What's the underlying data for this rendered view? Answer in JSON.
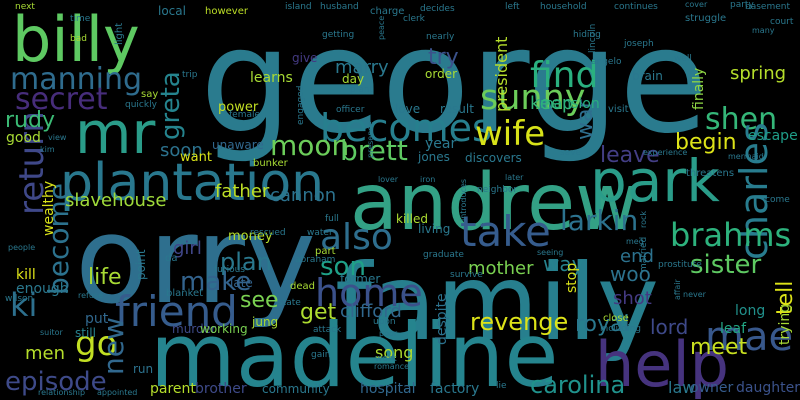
{
  "wordcloud": {
    "words": [
      {
        "text": "george",
        "color": "#2a7b8e"
      },
      {
        "text": "orry",
        "color": "#2e6f8e"
      },
      {
        "text": "family",
        "color": "#277f8e"
      },
      {
        "text": "madeline",
        "color": "#25848e"
      },
      {
        "text": "andrew",
        "color": "#33a185"
      },
      {
        "text": "billy",
        "color": "#5ec962"
      },
      {
        "text": "mr",
        "color": "#2a9c89"
      },
      {
        "text": "park",
        "color": "#2a9c89"
      },
      {
        "text": "help",
        "color": "#46337e"
      },
      {
        "text": "plantation",
        "color": "#29788e"
      },
      {
        "text": "friend",
        "color": "#365c8d"
      },
      {
        "text": "return",
        "color": "#3f4889"
      },
      {
        "text": "become",
        "color": "#2c728e"
      },
      {
        "text": "home",
        "color": "#3b518b"
      },
      {
        "text": "also",
        "color": "#2e6e8e"
      },
      {
        "text": "take",
        "color": "#365c8d"
      },
      {
        "text": "manning",
        "color": "#2f6c8e"
      },
      {
        "text": "secret",
        "color": "#472d7b"
      },
      {
        "text": "becomes",
        "color": "#277f8e"
      },
      {
        "text": "sunny",
        "color": "#6ccd5a"
      },
      {
        "text": "find",
        "color": "#2ab07f"
      },
      {
        "text": "wife",
        "color": "#d8e219"
      },
      {
        "text": "shen",
        "color": "#35b779"
      },
      {
        "text": "charles",
        "color": "#287c8e"
      },
      {
        "text": "brahms",
        "color": "#2db27d"
      },
      {
        "text": "mae",
        "color": "#38588c"
      },
      {
        "text": "go",
        "color": "#c2df23"
      },
      {
        "text": "new",
        "color": "#31688e"
      },
      {
        "text": "ki",
        "color": "#2d708e"
      },
      {
        "text": "moon",
        "color": "#6ccd5a"
      },
      {
        "text": "greta",
        "color": "#25848e"
      },
      {
        "text": "brett",
        "color": "#5ec962"
      },
      {
        "text": "larkin",
        "color": "#2c728e"
      },
      {
        "text": "son",
        "color": "#1fa188"
      },
      {
        "text": "make",
        "color": "#33638d"
      },
      {
        "text": "plan",
        "color": "#2a788e"
      },
      {
        "text": "life",
        "color": "#a8db34"
      },
      {
        "text": "get",
        "color": "#addc30"
      },
      {
        "text": "see",
        "color": "#7ad151"
      },
      {
        "text": "episode",
        "color": "#3e4a89"
      },
      {
        "text": "carolina",
        "color": "#20928c"
      },
      {
        "text": "revenge",
        "color": "#dde318"
      },
      {
        "text": "meet",
        "color": "#c8e020"
      },
      {
        "text": "tell",
        "color": "#dde318"
      },
      {
        "text": "sister",
        "color": "#5ec962"
      },
      {
        "text": "rudy",
        "color": "#3bbb75"
      },
      {
        "text": "begin",
        "color": "#dde318"
      },
      {
        "text": "leave",
        "color": "#433e85"
      },
      {
        "text": "war",
        "color": "#2e6e8e"
      },
      {
        "text": "spring",
        "color": "#b5de2b"
      },
      {
        "text": "royal",
        "color": "#2a788e"
      },
      {
        "text": "lord",
        "color": "#3e4989"
      },
      {
        "text": "men",
        "color": "#b5de2b"
      },
      {
        "text": "woo",
        "color": "#2c728e"
      },
      {
        "text": "father",
        "color": "#bddf26"
      },
      {
        "text": "cannon",
        "color": "#2c728e"
      },
      {
        "text": "slavehouse",
        "color": "#9fda3a"
      },
      {
        "text": "keep",
        "color": "#35b779"
      },
      {
        "text": "try",
        "color": "#3b528b"
      },
      {
        "text": "marry",
        "color": "#2a788e"
      },
      {
        "text": "soon",
        "color": "#2c728e"
      },
      {
        "text": "way",
        "color": "#26828e"
      },
      {
        "text": "clifford",
        "color": "#31688e"
      },
      {
        "text": "mother",
        "color": "#7ad151"
      },
      {
        "text": "song",
        "color": "#addc30"
      },
      {
        "text": "girl",
        "color": "#404688"
      },
      {
        "text": "end",
        "color": "#2c728e"
      },
      {
        "text": "shot",
        "color": "#443a83"
      },
      {
        "text": "president",
        "color": "#b5de2b"
      },
      {
        "text": "mansion",
        "color": "#29af7f"
      },
      {
        "text": "stop",
        "color": "#d8e219"
      },
      {
        "text": "despite",
        "color": "#2c728e"
      },
      {
        "text": "learns",
        "color": "#a8db34"
      },
      {
        "text": "escape",
        "color": "#1f9e89"
      },
      {
        "text": "finally",
        "color": "#8fd744"
      },
      {
        "text": "hospital",
        "color": "#31688e"
      },
      {
        "text": "factory",
        "color": "#2a788e"
      },
      {
        "text": "law",
        "color": "#2a788e"
      },
      {
        "text": "leaf",
        "color": "#22a785"
      },
      {
        "text": "trying",
        "color": "#a8db34"
      },
      {
        "text": "daughter",
        "color": "#3b528b"
      },
      {
        "text": "long",
        "color": "#21918c"
      },
      {
        "text": "owner",
        "color": "#365c8d"
      },
      {
        "text": "brother",
        "color": "#3e4a89"
      },
      {
        "text": "parent",
        "color": "#b5de2b"
      },
      {
        "text": "community",
        "color": "#2a788e"
      },
      {
        "text": "put",
        "color": "#31688e"
      },
      {
        "text": "still",
        "color": "#26828e"
      },
      {
        "text": "run",
        "color": "#2c728e"
      },
      {
        "text": "kill",
        "color": "#dde318"
      },
      {
        "text": "wealthy",
        "color": "#d8e219"
      },
      {
        "text": "good",
        "color": "#a8db34"
      },
      {
        "text": "enough",
        "color": "#2a788e"
      },
      {
        "text": "want",
        "color": "#d8e219"
      },
      {
        "text": "power",
        "color": "#c2df23"
      },
      {
        "text": "unaware",
        "color": "#31688e"
      },
      {
        "text": "money",
        "color": "#b5de2b"
      },
      {
        "text": "late",
        "color": "#33638d"
      },
      {
        "text": "point",
        "color": "#2a788e"
      },
      {
        "text": "jung",
        "color": "#a8db34"
      },
      {
        "text": "murder",
        "color": "#3e4a89"
      },
      {
        "text": "working",
        "color": "#7ad151"
      },
      {
        "text": "killed",
        "color": "#addc30"
      },
      {
        "text": "former",
        "color": "#2a788e"
      },
      {
        "text": "year",
        "color": "#2a788e"
      },
      {
        "text": "jones",
        "color": "#2a788e"
      },
      {
        "text": "discovers",
        "color": "#2a788e"
      },
      {
        "text": "order",
        "color": "#a8db34"
      },
      {
        "text": "love",
        "color": "#2a788e"
      },
      {
        "text": "result",
        "color": "#2a788e"
      },
      {
        "text": "living",
        "color": "#2a788e"
      },
      {
        "text": "day",
        "color": "#a8db34"
      },
      {
        "text": "local",
        "color": "#2a788e"
      },
      {
        "text": "next",
        "color": "#a8db34"
      },
      {
        "text": "time",
        "color": "#2a788e"
      },
      {
        "text": "bad",
        "color": "#a8db34"
      },
      {
        "text": "however",
        "color": "#bddf26"
      },
      {
        "text": "island",
        "color": "#2a788e"
      },
      {
        "text": "husband",
        "color": "#2a788e"
      },
      {
        "text": "charge",
        "color": "#2a788e"
      },
      {
        "text": "decides",
        "color": "#2a788e"
      },
      {
        "text": "left",
        "color": "#2a788e"
      },
      {
        "text": "household",
        "color": "#2a788e"
      },
      {
        "text": "continues",
        "color": "#2a788e"
      },
      {
        "text": "struggle",
        "color": "#2a788e"
      },
      {
        "text": "party",
        "color": "#2a788e"
      },
      {
        "text": "basement",
        "color": "#2a788e"
      },
      {
        "text": "court",
        "color": "#2a788e"
      },
      {
        "text": "brain",
        "color": "#2a788e"
      },
      {
        "text": "visit",
        "color": "#2a788e"
      },
      {
        "text": "joseph",
        "color": "#2a788e"
      },
      {
        "text": "lincoln",
        "color": "#2a788e"
      },
      {
        "text": "light",
        "color": "#2a788e"
      },
      {
        "text": "give",
        "color": "#443a83"
      },
      {
        "text": "getting",
        "color": "#2a788e"
      },
      {
        "text": "peace",
        "color": "#2a788e"
      },
      {
        "text": "clerk",
        "color": "#2a788e"
      },
      {
        "text": "hiding",
        "color": "#2a788e"
      },
      {
        "text": "nearly",
        "color": "#2a788e"
      },
      {
        "text": "angelo",
        "color": "#2a788e"
      },
      {
        "text": "well",
        "color": "#2a788e"
      },
      {
        "text": "many",
        "color": "#2a788e"
      },
      {
        "text": "cover",
        "color": "#2a788e"
      },
      {
        "text": "trip",
        "color": "#2a788e"
      },
      {
        "text": "say",
        "color": "#a8db34"
      },
      {
        "text": "quickly",
        "color": "#2a788e"
      },
      {
        "text": "female",
        "color": "#2a788e"
      },
      {
        "text": "plant",
        "color": "#2a788e"
      },
      {
        "text": "officer",
        "color": "#2a788e"
      },
      {
        "text": "engaged",
        "color": "#2a788e"
      },
      {
        "text": "save",
        "color": "#2a788e"
      },
      {
        "text": "experience",
        "color": "#2a788e"
      },
      {
        "text": "mermaid",
        "color": "#2a788e"
      },
      {
        "text": "bunker",
        "color": "#a8db34"
      },
      {
        "text": "rescued",
        "color": "#2a788e"
      },
      {
        "text": "water",
        "color": "#2a788e"
      },
      {
        "text": "full",
        "color": "#2a788e"
      },
      {
        "text": "presence",
        "color": "#2a788e"
      },
      {
        "text": "lover",
        "color": "#2a788e"
      },
      {
        "text": "iron",
        "color": "#2a788e"
      },
      {
        "text": "neighbor",
        "color": "#2a788e"
      },
      {
        "text": "threatens",
        "color": "#2a788e"
      },
      {
        "text": "come",
        "color": "#2a788e"
      },
      {
        "text": "introduces",
        "color": "#2a788e"
      },
      {
        "text": "later",
        "color": "#2a788e"
      },
      {
        "text": "rock",
        "color": "#2a788e"
      },
      {
        "text": "meg",
        "color": "#2a788e"
      },
      {
        "text": "prostitute",
        "color": "#2a788e"
      },
      {
        "text": "people",
        "color": "#2a788e"
      },
      {
        "text": "view",
        "color": "#2a788e"
      },
      {
        "text": "kim",
        "color": "#2a788e"
      },
      {
        "text": "da",
        "color": "#2a788e"
      },
      {
        "text": "furious",
        "color": "#2a788e"
      },
      {
        "text": "abraham",
        "color": "#2a788e"
      },
      {
        "text": "part",
        "color": "#a8db34"
      },
      {
        "text": "dead",
        "color": "#a8db34"
      },
      {
        "text": "state",
        "color": "#2a788e"
      },
      {
        "text": "graduate",
        "color": "#2a788e"
      },
      {
        "text": "seeing",
        "color": "#2a788e"
      },
      {
        "text": "survive",
        "color": "#2a788e"
      },
      {
        "text": "married",
        "color": "#2a788e"
      },
      {
        "text": "affair",
        "color": "#2a788e"
      },
      {
        "text": "never",
        "color": "#2a788e"
      },
      {
        "text": "refuse",
        "color": "#2a788e"
      },
      {
        "text": "wilson",
        "color": "#2a788e"
      },
      {
        "text": "suitor",
        "color": "#2a788e"
      },
      {
        "text": "blanket",
        "color": "#2a788e"
      },
      {
        "text": "upon",
        "color": "#2a788e"
      },
      {
        "text": "poor",
        "color": "#2a788e"
      },
      {
        "text": "attack",
        "color": "#2a788e"
      },
      {
        "text": "close",
        "color": "#a8db34"
      },
      {
        "text": "including",
        "color": "#2a788e"
      },
      {
        "text": "gain",
        "color": "#2a788e"
      },
      {
        "text": "work",
        "color": "#2a788e"
      },
      {
        "text": "romance",
        "color": "#2a788e"
      },
      {
        "text": "lie",
        "color": "#2a788e"
      },
      {
        "text": "relationship",
        "color": "#2a788e"
      },
      {
        "text": "appointed",
        "color": "#2a788e"
      }
    ]
  }
}
